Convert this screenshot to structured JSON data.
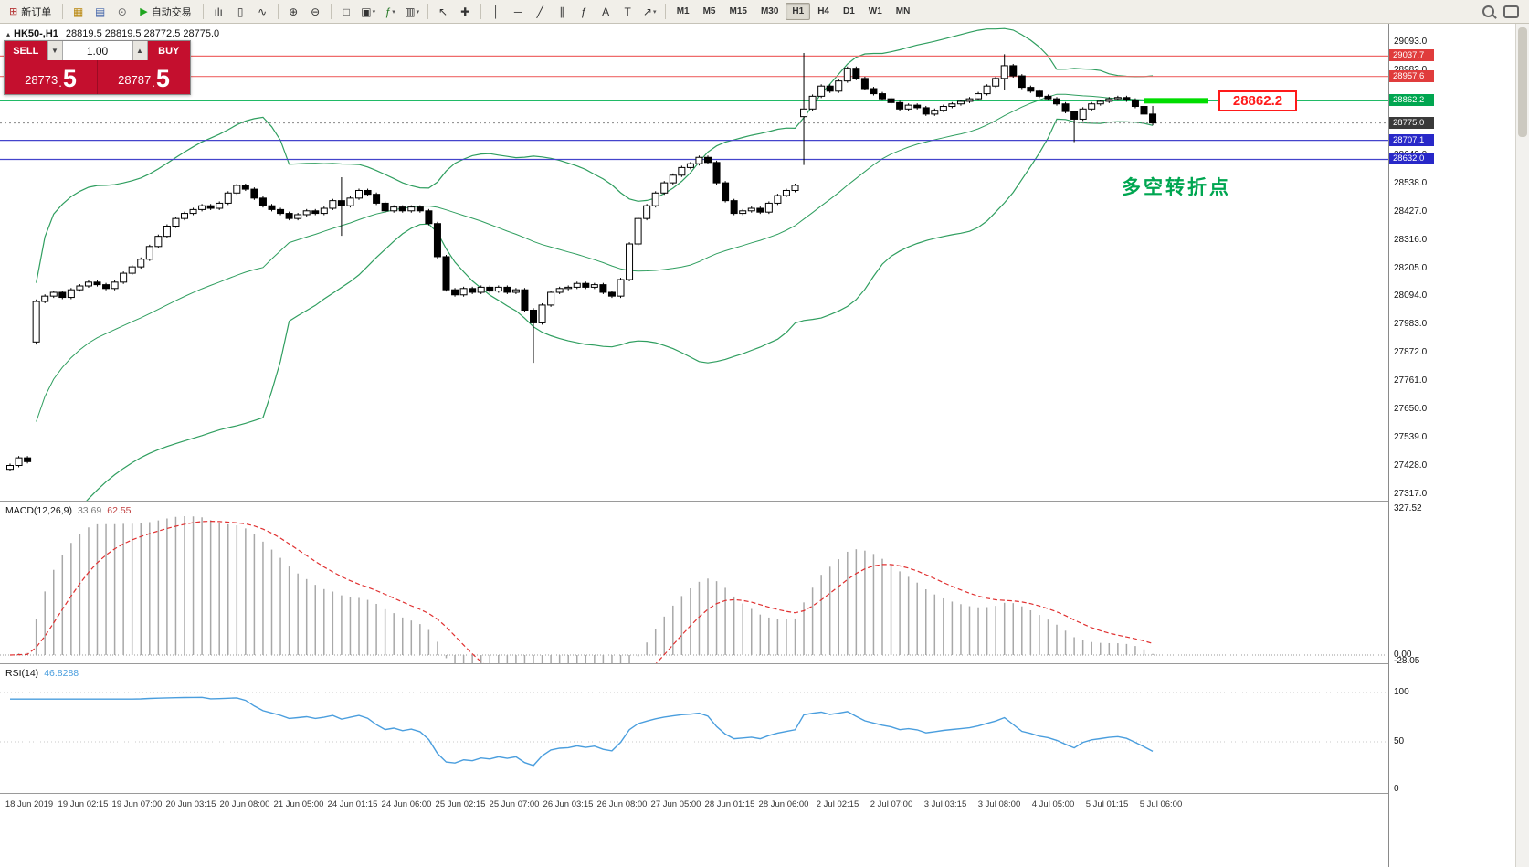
{
  "toolbar": {
    "items": [
      {
        "t": "btn",
        "name": "new-order",
        "glyph": "⊞",
        "glyph_color": "#b43333",
        "label": "新订单"
      },
      {
        "t": "sep"
      },
      {
        "t": "ico",
        "name": "chart-window",
        "glyph": "▦",
        "color": "#b8860b"
      },
      {
        "t": "ico",
        "name": "profiles",
        "glyph": "▤",
        "color": "#4466aa"
      },
      {
        "t": "ico",
        "name": "refresh",
        "glyph": "⊙",
        "color": "#666666"
      },
      {
        "t": "btn",
        "name": "auto-trading",
        "glyph": "▶",
        "glyph_color": "#1fa51f",
        "label": "自动交易"
      },
      {
        "t": "sep"
      },
      {
        "t": "ico",
        "name": "bar-chart",
        "glyph": "ılı",
        "color": "#333333"
      },
      {
        "t": "ico",
        "name": "candlestick-chart",
        "glyph": "▯",
        "color": "#333333"
      },
      {
        "t": "ico",
        "name": "line-chart",
        "glyph": "∿",
        "color": "#333333"
      },
      {
        "t": "sep"
      },
      {
        "t": "ico",
        "name": "zoom-in",
        "glyph": "⊕",
        "color": "#333333"
      },
      {
        "t": "ico",
        "name": "zoom-out",
        "glyph": "⊖",
        "color": "#333333"
      },
      {
        "t": "sep"
      },
      {
        "t": "ico",
        "name": "tile-windows",
        "glyph": "□",
        "color": "#333333"
      },
      {
        "t": "ico",
        "name": "arrange-windows",
        "glyph": "▣",
        "color": "#333333",
        "caret": true
      },
      {
        "t": "ico",
        "name": "indicators",
        "glyph": "ƒ",
        "color": "#2a7a2a",
        "caret": true
      },
      {
        "t": "ico",
        "name": "templates",
        "glyph": "▥",
        "color": "#333333",
        "caret": true
      },
      {
        "t": "sep"
      },
      {
        "t": "ico",
        "name": "cursor",
        "glyph": "↖",
        "color": "#333333"
      },
      {
        "t": "ico",
        "name": "crosshair",
        "glyph": "✚",
        "color": "#333333"
      },
      {
        "t": "sep"
      },
      {
        "t": "ico",
        "name": "vertical-line",
        "glyph": "│",
        "color": "#333333"
      },
      {
        "t": "ico",
        "name": "horizontal-line",
        "glyph": "─",
        "color": "#333333"
      },
      {
        "t": "ico",
        "name": "trendline",
        "glyph": "╱",
        "color": "#333333"
      },
      {
        "t": "ico",
        "name": "equidistant-channel",
        "glyph": "∥",
        "color": "#333333"
      },
      {
        "t": "ico",
        "name": "fibonacci",
        "glyph": "ƒ",
        "color": "#333333"
      },
      {
        "t": "ico",
        "name": "text",
        "glyph": "A",
        "color": "#333333"
      },
      {
        "t": "ico",
        "name": "text-label",
        "glyph": "T",
        "color": "#333333"
      },
      {
        "t": "ico",
        "name": "arrows",
        "glyph": "↗",
        "color": "#333333",
        "caret": true
      },
      {
        "t": "sep"
      }
    ],
    "timeframes": [
      "M1",
      "M5",
      "M15",
      "M30",
      "H1",
      "H4",
      "D1",
      "W1",
      "MN"
    ],
    "active_timeframe": "H1"
  },
  "chart_header": {
    "symbol": "HK50-,H1",
    "ohlc": "28819.5 28819.5 28772.5 28775.0"
  },
  "trade_panel": {
    "sell_label": "SELL",
    "buy_label": "BUY",
    "volume": "1.00",
    "sell_price": "28773",
    "sell_pip": "5",
    "buy_price": "28787",
    "buy_pip": "5",
    "price_sep": "."
  },
  "annotation": {
    "text": "多空转折点",
    "color": "#00a651"
  },
  "callout": {
    "text": "28862.2",
    "color": "#ff1a1a"
  },
  "macd": {
    "name": "MACD(12,26,9)",
    "value1": "33.69",
    "value2": "62.55",
    "axis_top": "327.52",
    "axis_zero": "0.00",
    "axis_min": "-28.05"
  },
  "rsi": {
    "name": "RSI(14)",
    "value": "46.8288",
    "axis": [
      "100",
      "50",
      "0"
    ]
  },
  "time_axis": {
    "labels": [
      "18 Jun 2019",
      "19 Jun 02:15",
      "19 Jun 07:00",
      "20 Jun 03:15",
      "20 Jun 08:00",
      "21 Jun 05:00",
      "24 Jun 01:15",
      "24 Jun 06:00",
      "25 Jun 02:15",
      "25 Jun 07:00",
      "26 Jun 03:15",
      "26 Jun 08:00",
      "27 Jun 05:00",
      "28 Jun 01:15",
      "28 Jun 06:00",
      "2 Jul 02:15",
      "2 Jul 07:00",
      "3 Jul 03:15",
      "3 Jul 08:00",
      "4 Jul 05:00",
      "5 Jul 01:15",
      "5 Jul 06:00"
    ]
  },
  "chart_data": {
    "type": "candlestick",
    "symbol": "HK50",
    "timeframe": "H1",
    "price_top": 29093.0,
    "price_bottom": 27317.0,
    "tick_step": 111,
    "closes": [
      27430,
      27460,
      27445,
      28074,
      28095,
      28110,
      28090,
      28120,
      28135,
      28150,
      28140,
      28125,
      28150,
      28185,
      28210,
      28240,
      28290,
      28330,
      28370,
      28400,
      28420,
      28435,
      28450,
      28440,
      28460,
      28500,
      28530,
      28515,
      28480,
      28450,
      28435,
      28420,
      28400,
      28415,
      28430,
      28420,
      28440,
      28470,
      28450,
      28480,
      28510,
      28495,
      28460,
      28430,
      28445,
      28430,
      28445,
      28430,
      28380,
      28250,
      28120,
      28100,
      28125,
      28110,
      28130,
      28115,
      28130,
      28110,
      28120,
      28040,
      27990,
      28060,
      28110,
      28125,
      28130,
      28145,
      28130,
      28140,
      28110,
      28095,
      28160,
      28300,
      28400,
      28450,
      28500,
      28540,
      28570,
      28600,
      28615,
      28640,
      28620,
      28540,
      28470,
      28420,
      28430,
      28440,
      28425,
      28460,
      28490,
      28510,
      28530,
      28830,
      28880,
      28920,
      28900,
      28940,
      28990,
      28950,
      28910,
      28890,
      28870,
      28855,
      28830,
      28845,
      28835,
      28810,
      28825,
      28840,
      28850,
      28860,
      28870,
      28890,
      28920,
      28950,
      29000,
      28960,
      28915,
      28900,
      28880,
      28870,
      28850,
      28820,
      28790,
      28830,
      28850,
      28860,
      28870,
      28875,
      28865,
      28840,
      28810,
      28775
    ],
    "open_overrides": {
      "0": 27415,
      "3": 27915,
      "91": 28800
    },
    "wick_overrides": {
      "3": [
        28082,
        27905
      ],
      "38": [
        28562,
        28332
      ],
      "60": [
        28048,
        27833
      ],
      "91": [
        29050,
        28610
      ],
      "114": [
        29045,
        28905
      ],
      "122": [
        28798,
        28700
      ],
      "131": [
        28842,
        28766
      ]
    },
    "levels": [
      {
        "price": 29037.7,
        "label": "29037.7",
        "line_color": "#ef6a6a",
        "tag_color": "#e03c3c",
        "style": "solid"
      },
      {
        "price": 28957.6,
        "label": "28957.6",
        "line_color": "#ef6a6a",
        "tag_color": "#e03c3c",
        "style": "solid"
      },
      {
        "price": 28862.2,
        "label": "28862.2",
        "line_color": "#00b050",
        "tag_color": "#00a650",
        "style": "solid",
        "highlight": true
      },
      {
        "price": 28775.0,
        "label": "28775.0",
        "line_color": "#888888",
        "tag_color": "#3a3a3a",
        "style": "dotted",
        "current": true
      },
      {
        "price": 28707.1,
        "label": "28707.1",
        "line_color": "#4444cc",
        "tag_color": "#2828c8",
        "style": "solid"
      },
      {
        "price": 28632.0,
        "label": "28632.0",
        "line_color": "#4444cc",
        "tag_color": "#2828c8",
        "style": "solid"
      }
    ],
    "indicators": {
      "bollinger": {
        "period": 30,
        "deviation": 2,
        "color": "#2f9e5f"
      },
      "macd": {
        "fast": 12,
        "slow": 26,
        "signal": 9,
        "current_macd": 33.69,
        "current_signal": 62.55,
        "hist_color": "#a8a8a8",
        "signal_color": "#e03030"
      },
      "rsi": {
        "period": 14,
        "current": 46.8288,
        "color": "#4a9ede"
      }
    }
  }
}
